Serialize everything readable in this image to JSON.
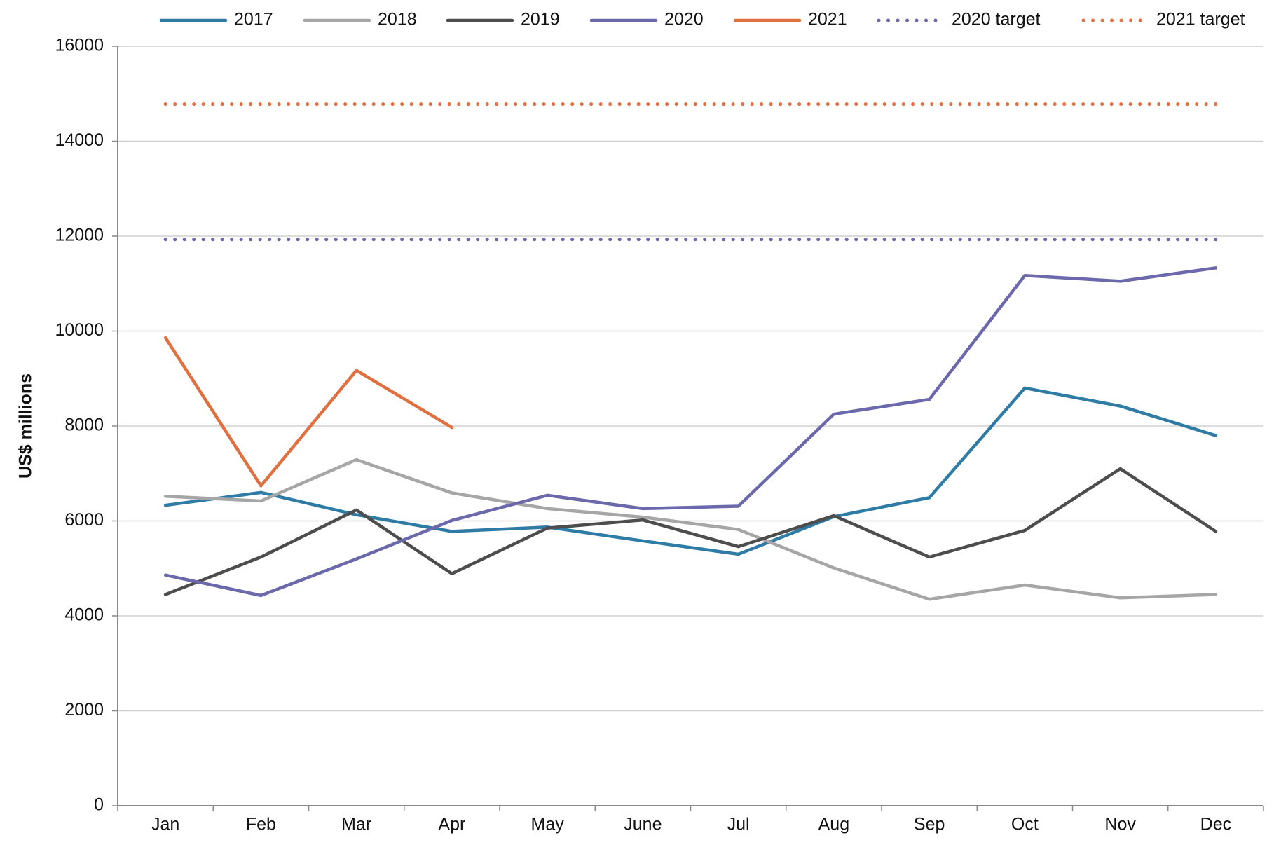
{
  "chart_data": {
    "type": "line",
    "y_label": "US$ millions",
    "categories": [
      "Jan",
      "Feb",
      "Mar",
      "Apr",
      "May",
      "June",
      "Jul",
      "Aug",
      "Sep",
      "Oct",
      "Nov",
      "Dec"
    ],
    "ylim": [
      0,
      16000
    ],
    "yticks": [
      0,
      2000,
      4000,
      6000,
      8000,
      10000,
      12000,
      14000,
      16000
    ],
    "grid": true,
    "legend": "top",
    "series": [
      {
        "name": "2017",
        "color": "#2e7ba6",
        "style": "solid",
        "values": [
          6330,
          6600,
          6130,
          5780,
          5870,
          5580,
          5300,
          6090,
          6490,
          8800,
          8420,
          7800
        ]
      },
      {
        "name": "2018",
        "color": "#a6a6a6",
        "style": "solid",
        "values": [
          6520,
          6420,
          7290,
          6590,
          6260,
          6080,
          5820,
          5010,
          4350,
          4650,
          4380,
          4450
        ]
      },
      {
        "name": "2019",
        "color": "#4d4d4d",
        "style": "solid",
        "values": [
          4450,
          5240,
          6230,
          4890,
          5850,
          6020,
          5460,
          6110,
          5240,
          5800,
          7100,
          5780
        ]
      },
      {
        "name": "2020",
        "color": "#6b68ab",
        "style": "solid",
        "values": [
          4860,
          4430,
          5200,
          6010,
          6540,
          6260,
          6310,
          8250,
          8560,
          11170,
          11050,
          11330
        ]
      },
      {
        "name": "2021",
        "color": "#e0703f",
        "style": "solid",
        "values": [
          9860,
          6740,
          9170,
          7970,
          null,
          null,
          null,
          null,
          null,
          null,
          null,
          null
        ]
      },
      {
        "name": "2020 target",
        "color": "#6b68ab",
        "style": "dotted",
        "values": [
          11930,
          11930,
          11930,
          11930,
          11930,
          11930,
          11930,
          11930,
          11930,
          11930,
          11930,
          11930
        ]
      },
      {
        "name": "2021 target",
        "color": "#e0703f",
        "style": "dotted",
        "values": [
          14780,
          14780,
          14780,
          14780,
          14780,
          14780,
          14780,
          14780,
          14780,
          14780,
          14780,
          14780
        ]
      }
    ]
  }
}
